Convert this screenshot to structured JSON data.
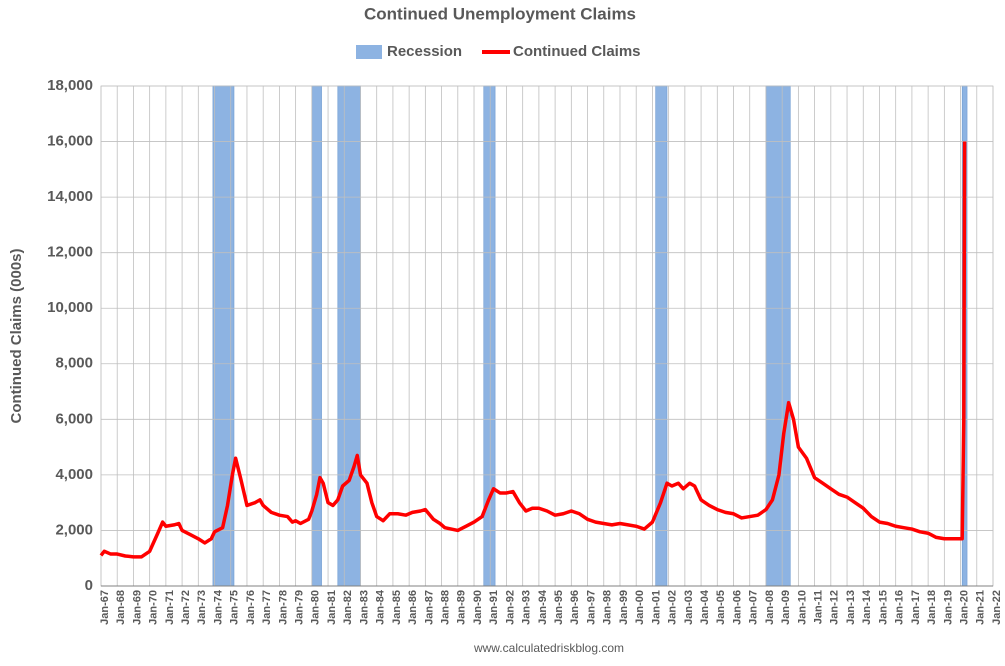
{
  "chart_data": {
    "type": "line",
    "title": "Continued Unemployment Claims",
    "ylabel": "Continued Claims (000s)",
    "source": "www.calculatedriskblog.com",
    "xlim": [
      1967,
      2022
    ],
    "xticks": [
      {
        "value": 1967,
        "label": "Jan-67"
      },
      {
        "value": 1968,
        "label": "Jan-68"
      },
      {
        "value": 1969,
        "label": "Jan-69"
      },
      {
        "value": 1970,
        "label": "Jan-70"
      },
      {
        "value": 1971,
        "label": "Jan-71"
      },
      {
        "value": 1972,
        "label": "Jan-72"
      },
      {
        "value": 1973,
        "label": "Jan-73"
      },
      {
        "value": 1974,
        "label": "Jan-74"
      },
      {
        "value": 1975,
        "label": "Jan-75"
      },
      {
        "value": 1976,
        "label": "Jan-76"
      },
      {
        "value": 1977,
        "label": "Jan-77"
      },
      {
        "value": 1978,
        "label": "Jan-78"
      },
      {
        "value": 1979,
        "label": "Jan-79"
      },
      {
        "value": 1980,
        "label": "Jan-80"
      },
      {
        "value": 1981,
        "label": "Jan-81"
      },
      {
        "value": 1982,
        "label": "Jan-82"
      },
      {
        "value": 1983,
        "label": "Jan-83"
      },
      {
        "value": 1984,
        "label": "Jan-84"
      },
      {
        "value": 1985,
        "label": "Jan-85"
      },
      {
        "value": 1986,
        "label": "Jan-86"
      },
      {
        "value": 1987,
        "label": "Jan-87"
      },
      {
        "value": 1988,
        "label": "Jan-88"
      },
      {
        "value": 1989,
        "label": "Jan-89"
      },
      {
        "value": 1990,
        "label": "Jan-90"
      },
      {
        "value": 1991,
        "label": "Jan-91"
      },
      {
        "value": 1992,
        "label": "Jan-92"
      },
      {
        "value": 1993,
        "label": "Jan-93"
      },
      {
        "value": 1994,
        "label": "Jan-94"
      },
      {
        "value": 1995,
        "label": "Jan-95"
      },
      {
        "value": 1996,
        "label": "Jan-96"
      },
      {
        "value": 1997,
        "label": "Jan-97"
      },
      {
        "value": 1998,
        "label": "Jan-98"
      },
      {
        "value": 1999,
        "label": "Jan-99"
      },
      {
        "value": 2000,
        "label": "Jan-00"
      },
      {
        "value": 2001,
        "label": "Jan-01"
      },
      {
        "value": 2002,
        "label": "Jan-02"
      },
      {
        "value": 2003,
        "label": "Jan-03"
      },
      {
        "value": 2004,
        "label": "Jan-04"
      },
      {
        "value": 2005,
        "label": "Jan-05"
      },
      {
        "value": 2006,
        "label": "Jan-06"
      },
      {
        "value": 2007,
        "label": "Jan-07"
      },
      {
        "value": 2008,
        "label": "Jan-08"
      },
      {
        "value": 2009,
        "label": "Jan-09"
      },
      {
        "value": 2010,
        "label": "Jan-10"
      },
      {
        "value": 2011,
        "label": "Jan-11"
      },
      {
        "value": 2012,
        "label": "Jan-12"
      },
      {
        "value": 2013,
        "label": "Jan-13"
      },
      {
        "value": 2014,
        "label": "Jan-14"
      },
      {
        "value": 2015,
        "label": "Jan-15"
      },
      {
        "value": 2016,
        "label": "Jan-16"
      },
      {
        "value": 2017,
        "label": "Jan-17"
      },
      {
        "value": 2018,
        "label": "Jan-18"
      },
      {
        "value": 2019,
        "label": "Jan-19"
      },
      {
        "value": 2020,
        "label": "Jan-20"
      },
      {
        "value": 2021,
        "label": "Jan-21"
      },
      {
        "value": 2022,
        "label": "Jan-22"
      }
    ],
    "ylim": [
      0,
      18000
    ],
    "yticks": [
      0,
      {
        "value": 2000,
        "label": "2,000"
      },
      {
        "value": 4000,
        "label": "4,000"
      },
      {
        "value": 6000,
        "label": "6,000"
      },
      {
        "value": 8000,
        "label": "8,000"
      },
      {
        "value": 10000,
        "label": "10,000"
      },
      {
        "value": 12000,
        "label": "12,000"
      },
      {
        "value": 14000,
        "label": "14,000"
      },
      {
        "value": 16000,
        "label": "16,000"
      },
      {
        "value": 18000,
        "label": "18,000"
      }
    ],
    "grid": true,
    "recession": {
      "name": "Recession",
      "color": "#8db3e2",
      "periods": [
        [
          1973.9,
          1975.2
        ],
        [
          1980.0,
          1980.6
        ],
        [
          1981.6,
          1983.0
        ],
        [
          1990.6,
          1991.3
        ],
        [
          2001.2,
          2001.9
        ],
        [
          2008.0,
          2009.5
        ],
        [
          2020.1,
          2020.4
        ]
      ]
    },
    "series": [
      {
        "name": "Continued Claims",
        "color": "#ff0000",
        "x": [
          1967.0,
          1967.2,
          1967.6,
          1968.0,
          1968.5,
          1969.0,
          1969.5,
          1970.0,
          1970.5,
          1970.8,
          1971.0,
          1971.5,
          1971.8,
          1972.0,
          1972.5,
          1973.0,
          1973.4,
          1973.8,
          1974.0,
          1974.5,
          1974.8,
          1975.1,
          1975.3,
          1975.6,
          1976.0,
          1976.5,
          1976.8,
          1977.0,
          1977.5,
          1978.0,
          1978.5,
          1978.8,
          1979.0,
          1979.3,
          1979.8,
          1980.0,
          1980.3,
          1980.5,
          1980.7,
          1981.0,
          1981.3,
          1981.6,
          1981.9,
          1982.3,
          1982.6,
          1982.8,
          1983.0,
          1983.4,
          1983.7,
          1984.0,
          1984.4,
          1984.8,
          1985.3,
          1985.8,
          1986.2,
          1986.7,
          1987.0,
          1987.5,
          1987.9,
          1988.2,
          1988.6,
          1989.0,
          1989.5,
          1990.0,
          1990.5,
          1990.9,
          1991.2,
          1991.6,
          1992.0,
          1992.4,
          1992.8,
          1993.2,
          1993.6,
          1994.0,
          1994.5,
          1995.0,
          1995.5,
          1996.0,
          1996.5,
          1997.0,
          1997.5,
          1998.0,
          1998.5,
          1999.0,
          1999.5,
          2000.0,
          2000.5,
          2001.0,
          2001.5,
          2001.9,
          2002.2,
          2002.6,
          2002.9,
          2003.3,
          2003.6,
          2004.0,
          2004.5,
          2005.0,
          2005.5,
          2006.0,
          2006.5,
          2007.0,
          2007.5,
          2008.0,
          2008.4,
          2008.8,
          2009.1,
          2009.4,
          2009.7,
          2010.0,
          2010.5,
          2011.0,
          2011.5,
          2012.0,
          2012.5,
          2013.0,
          2013.5,
          2014.0,
          2014.5,
          2015.0,
          2015.5,
          2016.0,
          2016.5,
          2017.0,
          2017.5,
          2018.0,
          2018.5,
          2019.0,
          2019.5,
          2020.1,
          2020.2,
          2020.25
        ],
        "values": [
          1100,
          1250,
          1150,
          1150,
          1080,
          1050,
          1050,
          1250,
          1900,
          2300,
          2150,
          2200,
          2250,
          2000,
          1850,
          1700,
          1550,
          1700,
          1950,
          2100,
          2900,
          4000,
          4600,
          3900,
          2900,
          3000,
          3100,
          2900,
          2650,
          2550,
          2500,
          2300,
          2350,
          2250,
          2400,
          2700,
          3300,
          3900,
          3700,
          3000,
          2900,
          3100,
          3600,
          3800,
          4300,
          4700,
          4000,
          3700,
          3000,
          2500,
          2350,
          2600,
          2600,
          2550,
          2650,
          2700,
          2750,
          2400,
          2250,
          2100,
          2050,
          2000,
          2150,
          2300,
          2500,
          3100,
          3500,
          3350,
          3350,
          3400,
          3000,
          2700,
          2800,
          2800,
          2700,
          2550,
          2600,
          2700,
          2600,
          2400,
          2300,
          2250,
          2200,
          2250,
          2200,
          2150,
          2050,
          2300,
          3000,
          3700,
          3600,
          3700,
          3500,
          3700,
          3600,
          3100,
          2900,
          2750,
          2650,
          2600,
          2450,
          2500,
          2550,
          2750,
          3100,
          4000,
          5500,
          6600,
          6000,
          5000,
          4600,
          3900,
          3700,
          3500,
          3300,
          3200,
          3000,
          2800,
          2500,
          2300,
          2250,
          2150,
          2100,
          2050,
          1950,
          1900,
          1750,
          1700,
          1700,
          1700,
          6000,
          16000
        ]
      }
    ]
  }
}
